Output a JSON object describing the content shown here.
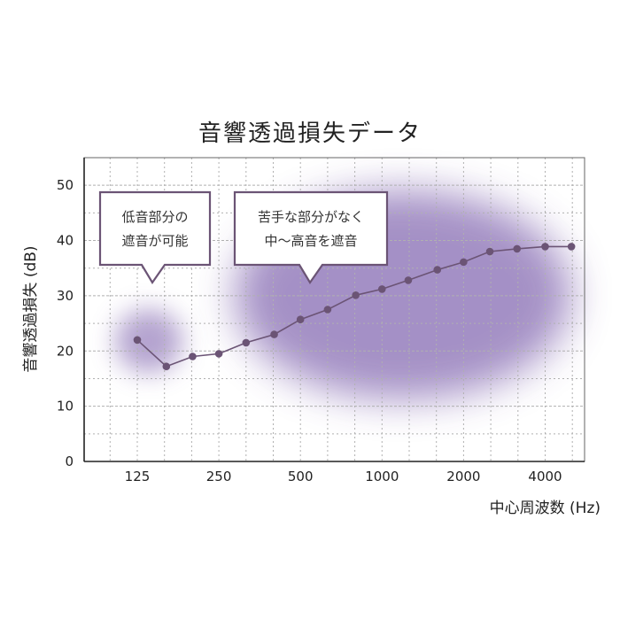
{
  "chart_data": {
    "type": "line",
    "title": "音響透過損失データ",
    "xlabel": "中心周波数 (Hz)",
    "ylabel": "音響透過損失 (dB)",
    "ylim": [
      0,
      55
    ],
    "yticks": [
      0,
      10,
      20,
      30,
      40,
      50
    ],
    "xtick_labels": [
      "125",
      "250",
      "500",
      "1000",
      "2000",
      "4000"
    ],
    "grid": true,
    "series": [
      {
        "x": [
          125,
          160,
          200,
          250,
          315,
          400,
          500,
          630,
          800,
          1000,
          1250,
          1600,
          2000,
          2500,
          3150,
          4000,
          5000
        ],
        "y": [
          22,
          17.2,
          19,
          19.5,
          21.5,
          23,
          25.7,
          27.5,
          30.1,
          31.2,
          32.8,
          34.7,
          36.1,
          38,
          38.5,
          38.9,
          38.9
        ],
        "color": "#6b5475"
      }
    ],
    "annotations": [
      {
        "line1": "低音部分の",
        "line2": "遮音が可能"
      },
      {
        "line1": "苦手な部分がなく",
        "line2": "中〜高音を遮音"
      }
    ],
    "colors": {
      "highlight": "#9b85c0",
      "callout_border": "#6b5475",
      "grid": "#b0b0b0"
    }
  }
}
